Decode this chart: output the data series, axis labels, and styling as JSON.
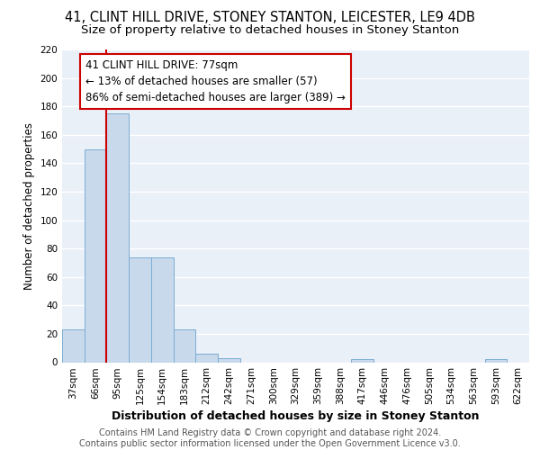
{
  "title1": "41, CLINT HILL DRIVE, STONEY STANTON, LEICESTER, LE9 4DB",
  "title2": "Size of property relative to detached houses in Stoney Stanton",
  "xlabel": "Distribution of detached houses by size in Stoney Stanton",
  "ylabel": "Number of detached properties",
  "categories": [
    "37sqm",
    "66sqm",
    "95sqm",
    "125sqm",
    "154sqm",
    "183sqm",
    "212sqm",
    "242sqm",
    "271sqm",
    "300sqm",
    "329sqm",
    "359sqm",
    "388sqm",
    "417sqm",
    "446sqm",
    "476sqm",
    "505sqm",
    "534sqm",
    "563sqm",
    "593sqm",
    "622sqm"
  ],
  "values": [
    23,
    150,
    175,
    74,
    74,
    23,
    6,
    3,
    0,
    0,
    0,
    0,
    0,
    2,
    0,
    0,
    0,
    0,
    0,
    2,
    0
  ],
  "bar_color": "#c9d9ec",
  "bar_edgecolor": "#7aadd4",
  "background_color": "#eaf0f8",
  "grid_color": "#ffffff",
  "property_line_x": 1.5,
  "annotation_text": "41 CLINT HILL DRIVE: 77sqm\n← 13% of detached houses are smaller (57)\n86% of semi-detached houses are larger (389) →",
  "annotation_box_color": "#ffffff",
  "annotation_box_edgecolor": "#cc0000",
  "ylim": [
    0,
    220
  ],
  "yticks": [
    0,
    20,
    40,
    60,
    80,
    100,
    120,
    140,
    160,
    180,
    200,
    220
  ],
  "footer_text": "Contains HM Land Registry data © Crown copyright and database right 2024.\nContains public sector information licensed under the Open Government Licence v3.0.",
  "property_line_color": "#cc0000",
  "title1_fontsize": 10.5,
  "title2_fontsize": 9.5,
  "xlabel_fontsize": 9,
  "ylabel_fontsize": 8.5,
  "tick_fontsize": 7.5,
  "annotation_fontsize": 8.5,
  "footer_fontsize": 7.0
}
